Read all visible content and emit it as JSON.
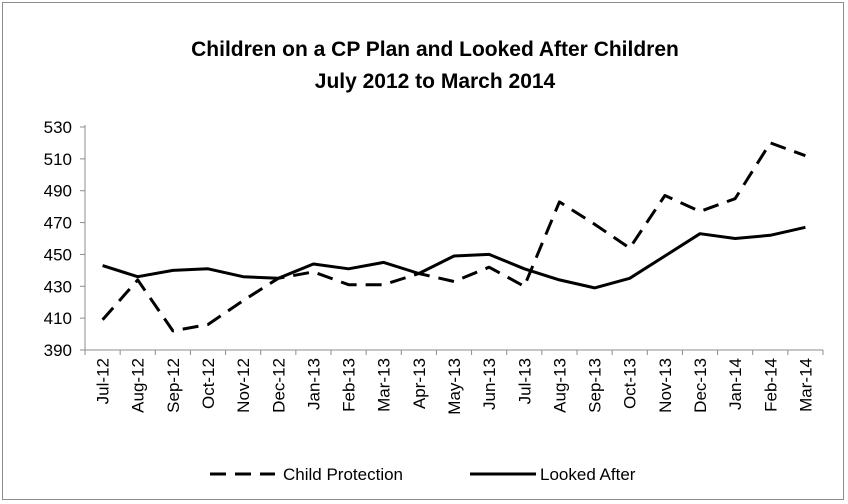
{
  "chart_data": {
    "type": "line",
    "title": "Children on a CP Plan and Looked After Children",
    "subtitle": "July 2012 to March 2014",
    "categories": [
      "Jul-12",
      "Aug-12",
      "Sep-12",
      "Oct-12",
      "Nov-12",
      "Dec-12",
      "Jan-13",
      "Feb-13",
      "Mar-13",
      "Apr-13",
      "May-13",
      "Jun-13",
      "Jul-13",
      "Aug-13",
      "Sep-13",
      "Oct-13",
      "Nov-13",
      "Dec-13",
      "Jan-14",
      "Feb-14",
      "Mar-14"
    ],
    "ylim": [
      390,
      530
    ],
    "yticks": [
      390,
      410,
      430,
      450,
      470,
      490,
      510,
      530
    ],
    "grid": false,
    "legend_position": "bottom",
    "series": [
      {
        "name": "Child Protection",
        "style": "dashed",
        "color": "#000000",
        "values": [
          409,
          434,
          402,
          406,
          421,
          435,
          439,
          431,
          431,
          438,
          433,
          442,
          430,
          483,
          469,
          454,
          487,
          477,
          485,
          520,
          512
        ]
      },
      {
        "name": "Looked After",
        "style": "solid",
        "color": "#000000",
        "values": [
          443,
          436,
          440,
          441,
          436,
          435,
          444,
          441,
          445,
          438,
          449,
          450,
          441,
          434,
          429,
          435,
          449,
          463,
          460,
          462,
          467
        ]
      }
    ]
  }
}
